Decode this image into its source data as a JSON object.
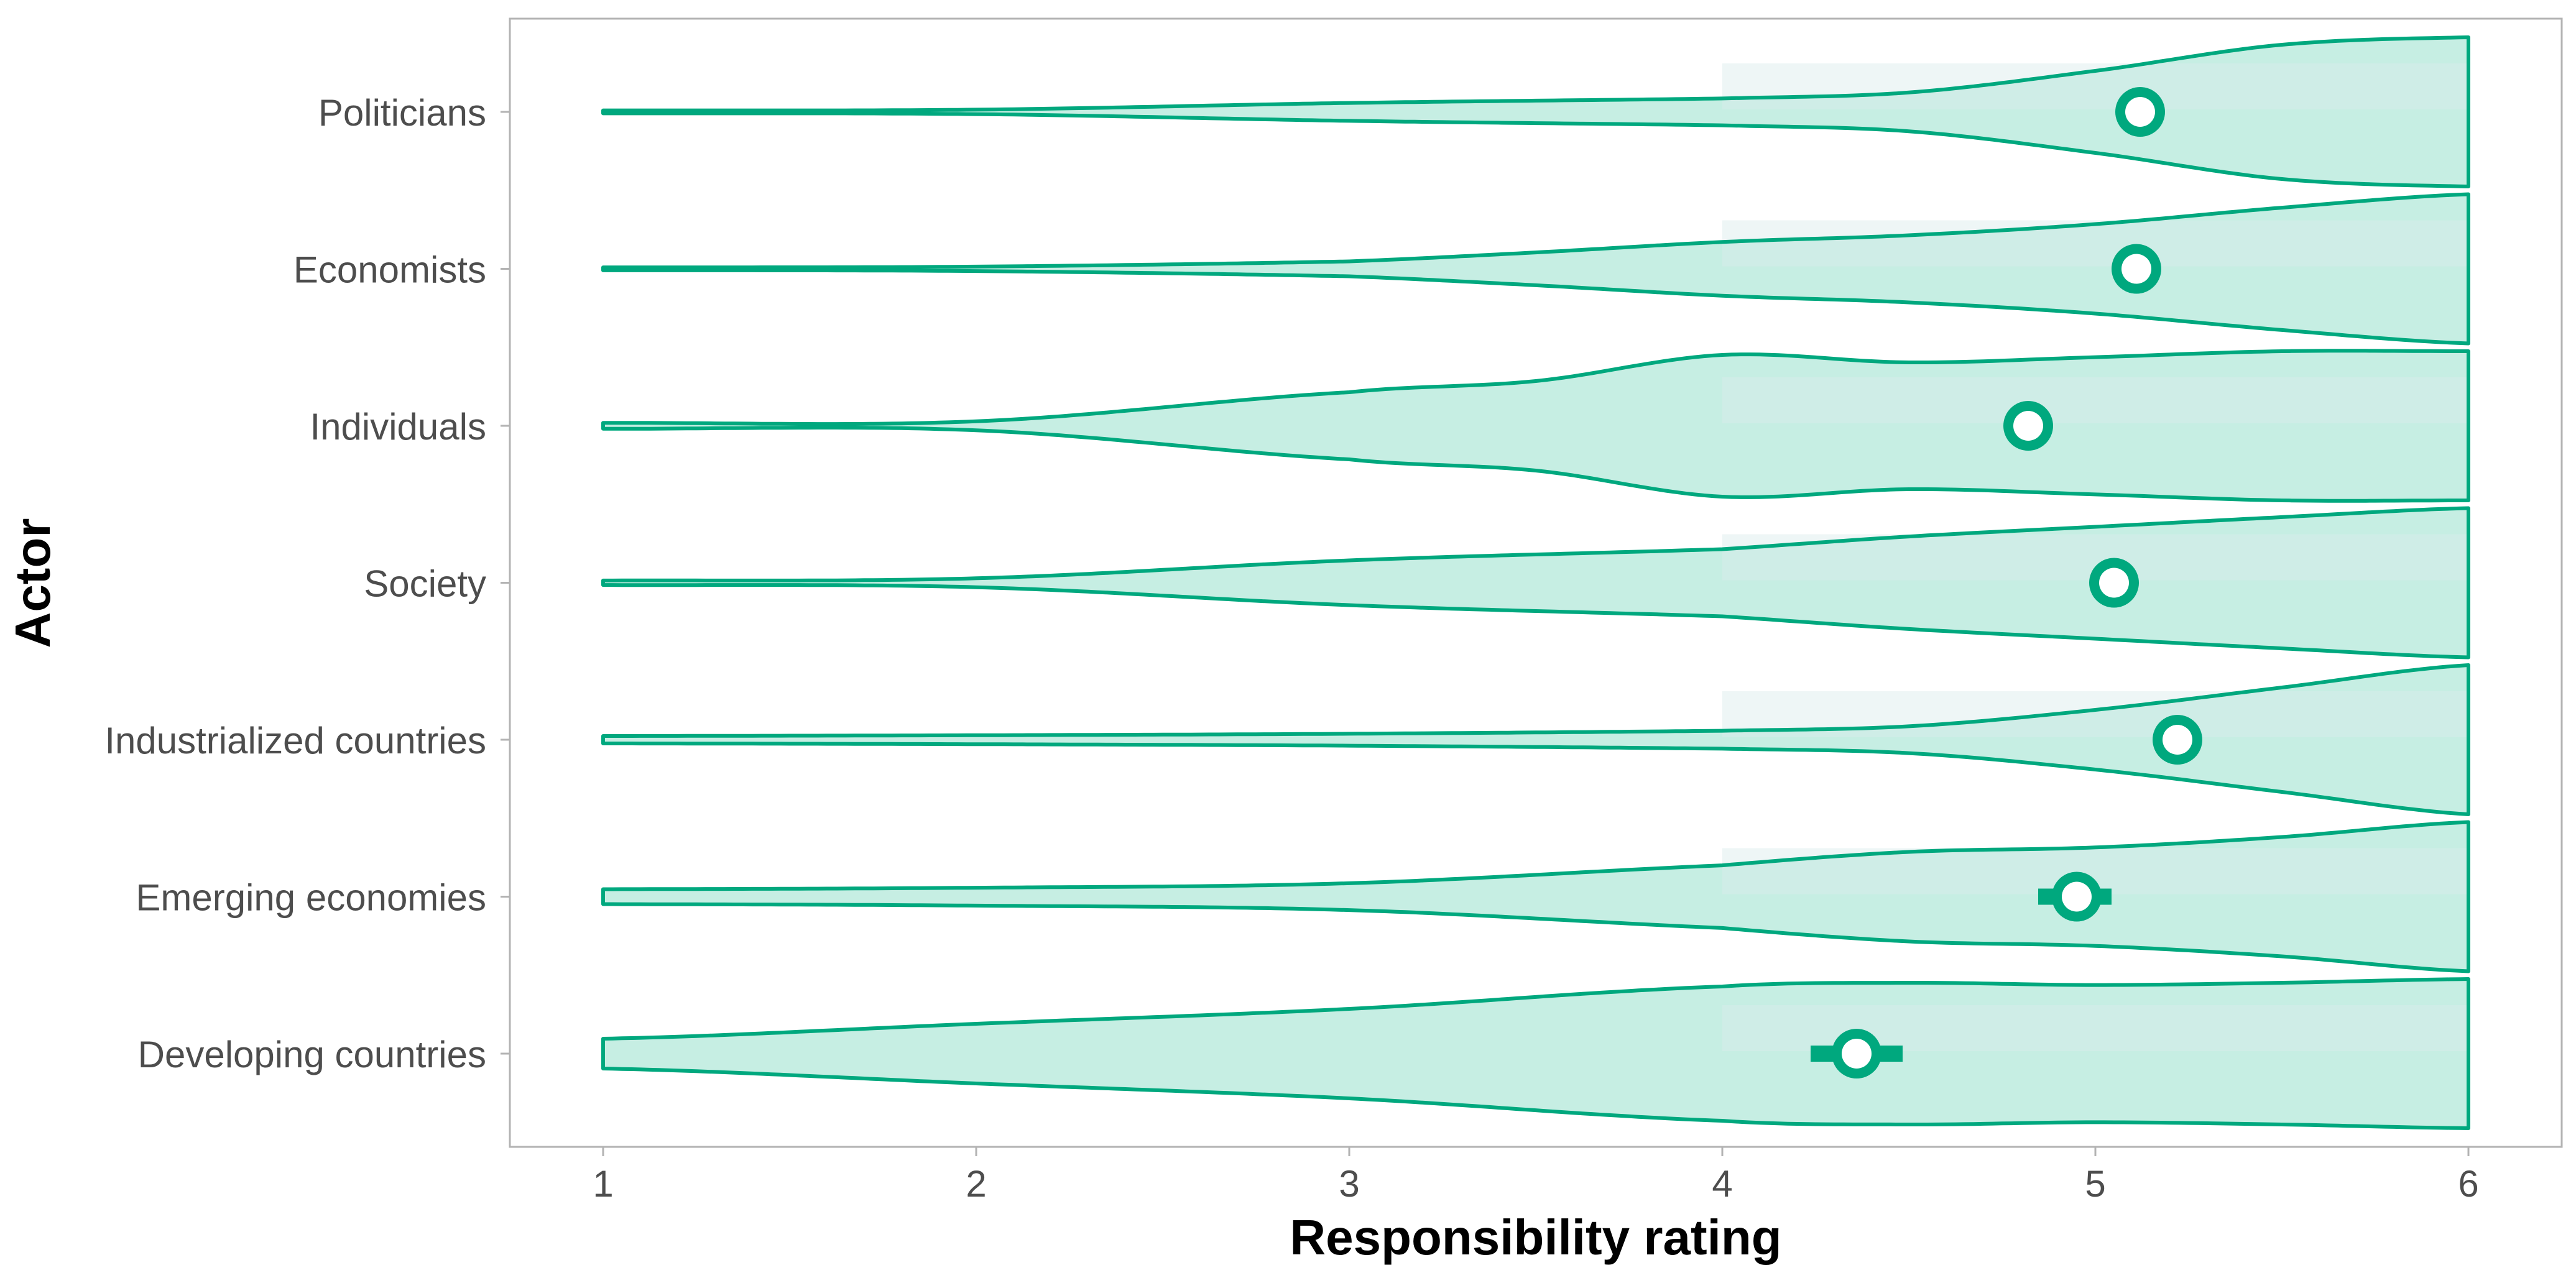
{
  "chart_data": {
    "type": "violin",
    "title": "",
    "xlabel": "Responsibility rating",
    "ylabel": "Actor",
    "xlim": [
      0.75,
      6.25
    ],
    "xticks": [
      1,
      2,
      3,
      4,
      5,
      6
    ],
    "xtick_labels": [
      "1",
      "2",
      "3",
      "4",
      "5",
      "6"
    ],
    "grid": false,
    "legend": "none",
    "colors": {
      "stroke": "#00A87E",
      "fill": "#C6EEE3",
      "band": "#D9ECEC",
      "frame": "#B3B3B3",
      "tick": "#4D4D4D",
      "marker_inner": "#FFFFFF"
    },
    "categories": [
      "Politicians",
      "Economists",
      "Individuals",
      "Society",
      "Industrialized countries",
      "Emerging economies",
      "Developing countries"
    ],
    "series": [
      {
        "name": "Politicians",
        "mean": 5.12,
        "ci": [
          5.1,
          5.14
        ],
        "density": [
          [
            1,
            0.02
          ],
          [
            2,
            0.03
          ],
          [
            3,
            0.12
          ],
          [
            4,
            0.18
          ],
          [
            4.5,
            0.26
          ],
          [
            5,
            0.55
          ],
          [
            5.5,
            0.9
          ],
          [
            6,
            1.0
          ]
        ]
      },
      {
        "name": "Economists",
        "mean": 5.11,
        "ci": [
          5.09,
          5.13
        ],
        "density": [
          [
            1,
            0.02
          ],
          [
            2,
            0.03
          ],
          [
            3,
            0.1
          ],
          [
            3.5,
            0.22
          ],
          [
            4,
            0.36
          ],
          [
            4.5,
            0.45
          ],
          [
            5,
            0.6
          ],
          [
            5.5,
            0.82
          ],
          [
            6,
            1.0
          ]
        ]
      },
      {
        "name": "Individuals",
        "mean": 4.82,
        "ci": [
          4.79,
          4.85
        ],
        "density": [
          [
            1,
            0.04
          ],
          [
            2,
            0.06
          ],
          [
            3,
            0.45
          ],
          [
            3.5,
            0.6
          ],
          [
            4,
            0.95
          ],
          [
            4.5,
            0.85
          ],
          [
            5,
            0.92
          ],
          [
            5.5,
            1.0
          ],
          [
            6,
            1.0
          ]
        ]
      },
      {
        "name": "Society",
        "mean": 5.05,
        "ci": [
          5.02,
          5.08
        ],
        "density": [
          [
            1,
            0.03
          ],
          [
            2,
            0.06
          ],
          [
            3,
            0.3
          ],
          [
            4,
            0.45
          ],
          [
            4.5,
            0.62
          ],
          [
            5,
            0.75
          ],
          [
            5.5,
            0.88
          ],
          [
            6,
            1.0
          ]
        ]
      },
      {
        "name": "Industrialized countries",
        "mean": 5.22,
        "ci": [
          5.19,
          5.25
        ],
        "density": [
          [
            1,
            0.05
          ],
          [
            2,
            0.06
          ],
          [
            3,
            0.08
          ],
          [
            4,
            0.12
          ],
          [
            4.5,
            0.18
          ],
          [
            5,
            0.4
          ],
          [
            5.5,
            0.7
          ],
          [
            6,
            1.0
          ]
        ]
      },
      {
        "name": "Emerging economies",
        "mean": 4.95,
        "ci": [
          4.87,
          5.02
        ],
        "density": [
          [
            1,
            0.1
          ],
          [
            2,
            0.12
          ],
          [
            3,
            0.18
          ],
          [
            4,
            0.42
          ],
          [
            4.5,
            0.6
          ],
          [
            5,
            0.66
          ],
          [
            5.5,
            0.8
          ],
          [
            6,
            1.0
          ]
        ]
      },
      {
        "name": "Developing countries",
        "mean": 4.36,
        "ci": [
          4.26,
          4.46
        ],
        "density": [
          [
            1,
            0.2
          ],
          [
            2,
            0.4
          ],
          [
            3,
            0.6
          ],
          [
            4,
            0.9
          ],
          [
            4.5,
            0.95
          ],
          [
            5,
            0.92
          ],
          [
            5.5,
            0.95
          ],
          [
            6,
            1.0
          ]
        ]
      }
    ]
  }
}
